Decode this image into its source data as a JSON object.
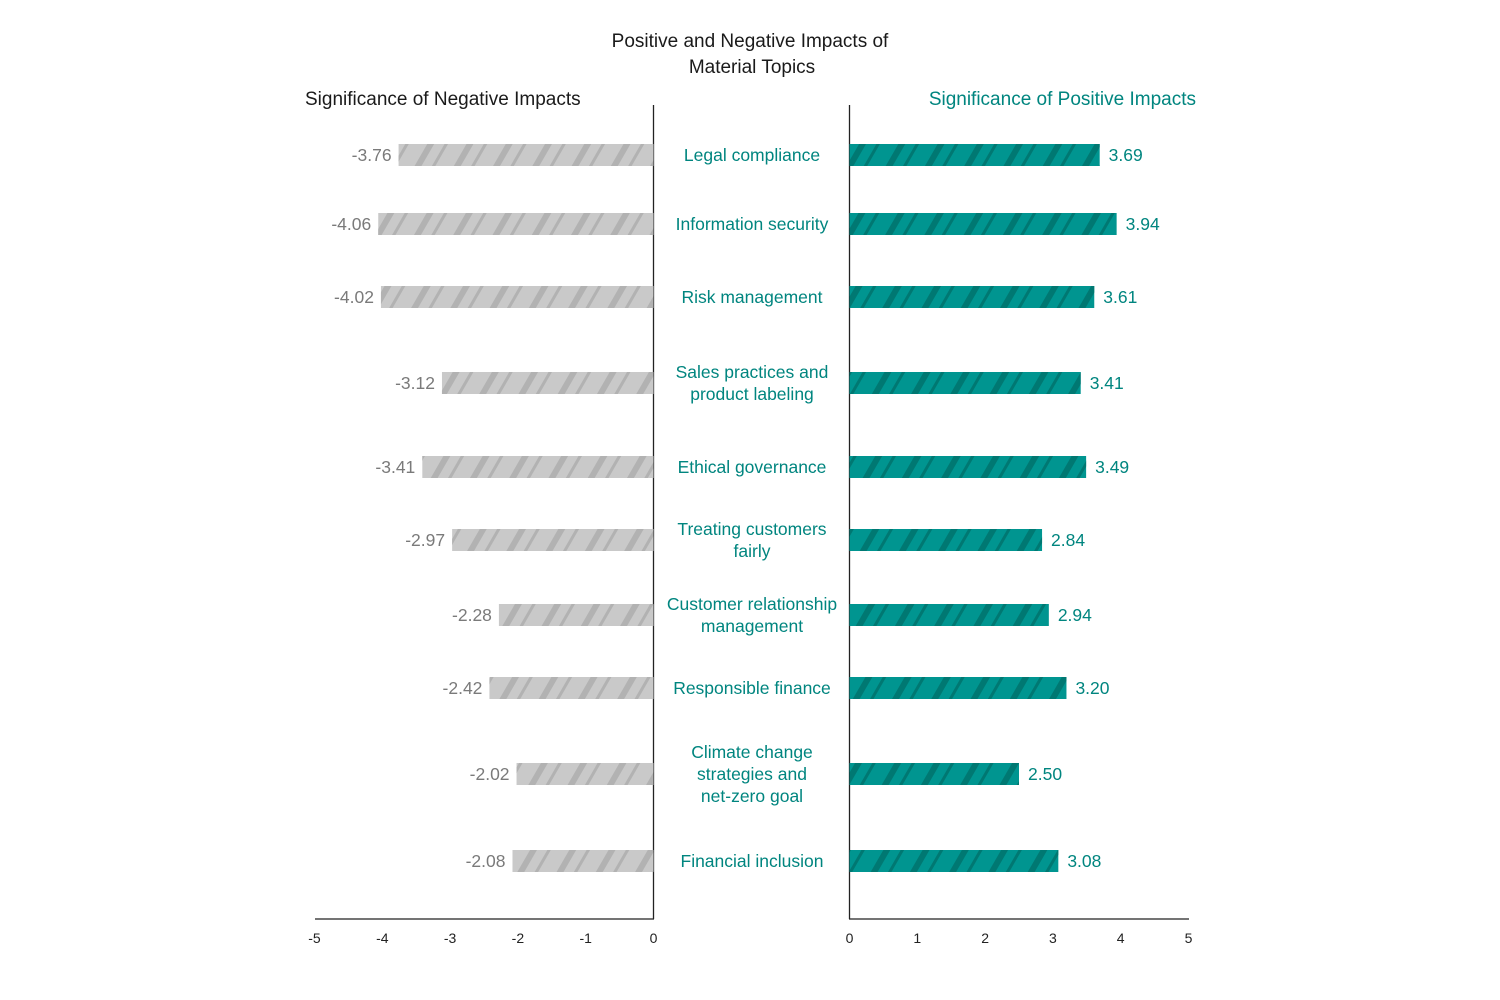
{
  "title_lines": [
    "Positive and Negative Impacts of",
    "Material Topics"
  ],
  "colors": {
    "negative_bar": "#c9c9c9",
    "negative_stripe": "#b2b2b2",
    "positive_bar": "#009590",
    "positive_stripe": "#007872",
    "topic_text": "#00857f",
    "negative_value_text": "#7a7a7a",
    "axis": "#222222"
  },
  "chart_data": [
    {
      "type": "bar",
      "orientation": "horizontal",
      "title": "Significance of Negative Impacts",
      "categories": [
        "Legal compliance",
        "Information security",
        "Risk management",
        "Sales practices and product labeling",
        "Ethical governance",
        "Treating customers fairly",
        "Customer relationship management",
        "Responsible finance",
        "Climate change strategies and net-zero goal",
        "Financial inclusion"
      ],
      "values": [
        -3.76,
        -4.06,
        -4.02,
        -3.12,
        -3.41,
        -2.97,
        -2.28,
        -2.42,
        -2.02,
        -2.08
      ],
      "value_labels": [
        "-3.76",
        "-4.06",
        "-4.02",
        "-3.12",
        "-3.41",
        "-2.97",
        "-2.28",
        "-2.42",
        "-2.02",
        "-2.08"
      ],
      "xlim": [
        -5,
        0
      ],
      "xticks": [
        "-5",
        "-4",
        "-3",
        "-2",
        "-1",
        "0"
      ],
      "grid": false
    },
    {
      "type": "bar",
      "orientation": "horizontal",
      "title": "Significance of Positive Impacts",
      "categories": [
        "Legal compliance",
        "Information security",
        "Risk management",
        "Sales practices and product labeling",
        "Ethical governance",
        "Treating customers fairly",
        "Customer relationship management",
        "Responsible finance",
        "Climate change strategies and net-zero goal",
        "Financial inclusion"
      ],
      "values": [
        3.69,
        3.94,
        3.61,
        3.41,
        3.49,
        2.84,
        2.94,
        3.2,
        2.5,
        3.08
      ],
      "value_labels": [
        "3.69",
        "3.94",
        "3.61",
        "3.41",
        "3.49",
        "2.84",
        "2.94",
        "3.20",
        "2.50",
        "3.08"
      ],
      "xlim": [
        0,
        5
      ],
      "xticks": [
        "0",
        "1",
        "2",
        "3",
        "4",
        "5"
      ],
      "grid": false
    }
  ],
  "topic_label_lines": [
    [
      "Legal compliance"
    ],
    [
      "Information security"
    ],
    [
      "Risk management"
    ],
    [
      "Sales practices and",
      "product labeling"
    ],
    [
      "Ethical governance"
    ],
    [
      "Treating customers",
      "fairly"
    ],
    [
      "Customer relationship",
      "management"
    ],
    [
      "Responsible finance"
    ],
    [
      "Climate change",
      "strategies and",
      "net-zero goal"
    ],
    [
      "Financial inclusion"
    ]
  ]
}
